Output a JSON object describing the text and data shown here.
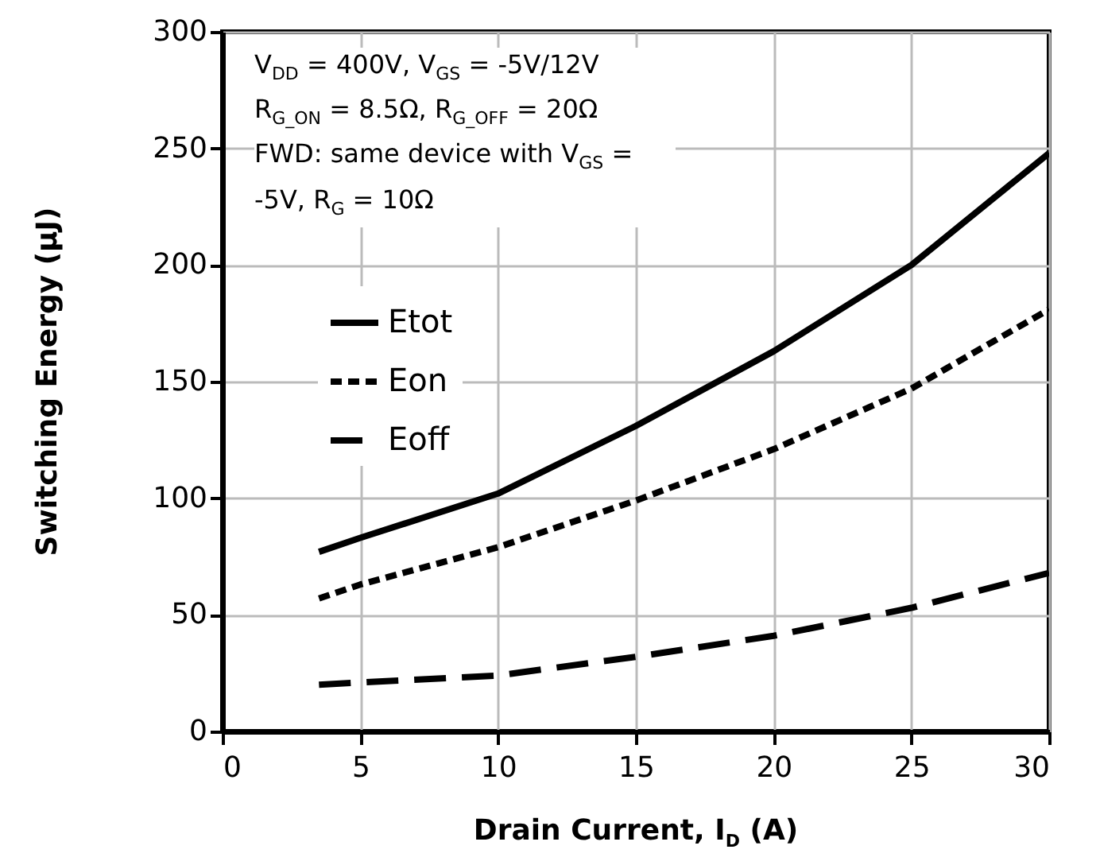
{
  "chart_data": {
    "type": "line",
    "xlabel": "Drain Current, I$_{D}$ (A)",
    "ylabel": "Switching Energy (μJ)",
    "x": [
      3.5,
      5,
      10,
      15,
      20,
      25,
      30
    ],
    "series": [
      {
        "name": "Etot",
        "color": "#000000",
        "line_style": "solid",
        "values": [
          77,
          83,
          102,
          131,
          163,
          200,
          248
        ]
      },
      {
        "name": "Eon",
        "color": "#000000",
        "line_style": "dotted",
        "values": [
          57,
          63,
          79,
          99,
          121,
          147,
          181
        ]
      },
      {
        "name": "Eoff",
        "color": "#000000",
        "line_style": "dashed",
        "values": [
          20,
          21,
          24,
          32,
          41,
          53,
          68
        ]
      }
    ],
    "xlim": [
      0,
      30
    ],
    "xticks": [
      0,
      5,
      10,
      15,
      20,
      25,
      30
    ],
    "ylim": [
      0,
      300
    ],
    "yticks": [
      0,
      50,
      100,
      150,
      200,
      250,
      300
    ],
    "grid": true,
    "legend": "left",
    "marker": "none",
    "annotations": [
      "V$_{DD}$ = 400V, V$_{GS}$ = -5V/12V",
      "R$_{G_ON}$ = 8.5Ω, R$_{G_OFF}$ = 20Ω",
      "FWD: same device with V$_{GS}$ = -5V, R$_{G}$ = 10Ω"
    ]
  }
}
